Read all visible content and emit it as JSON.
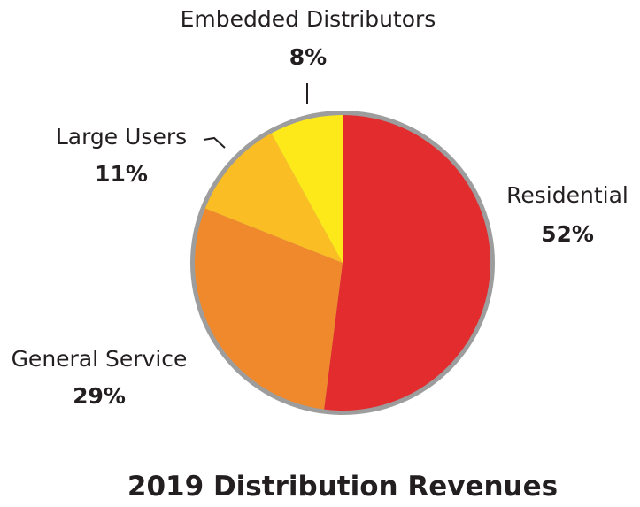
{
  "chart_data": {
    "type": "pie",
    "title": "2019 Distribution Revenues",
    "slices": [
      {
        "label": "Residential",
        "pct_label": "52%",
        "value": 52,
        "color": "#e32c2e"
      },
      {
        "label": "General Service",
        "pct_label": "29%",
        "value": 29,
        "color": "#f0892c"
      },
      {
        "label": "Large Users",
        "pct_label": "11%",
        "value": 11,
        "color": "#fbbd24"
      },
      {
        "label": "Embedded Distributors",
        "pct_label": "8%",
        "value": 8,
        "color": "#fde91a"
      }
    ],
    "rim_color": "#9d9d9d",
    "start": "12 o'clock",
    "direction": "clockwise"
  }
}
